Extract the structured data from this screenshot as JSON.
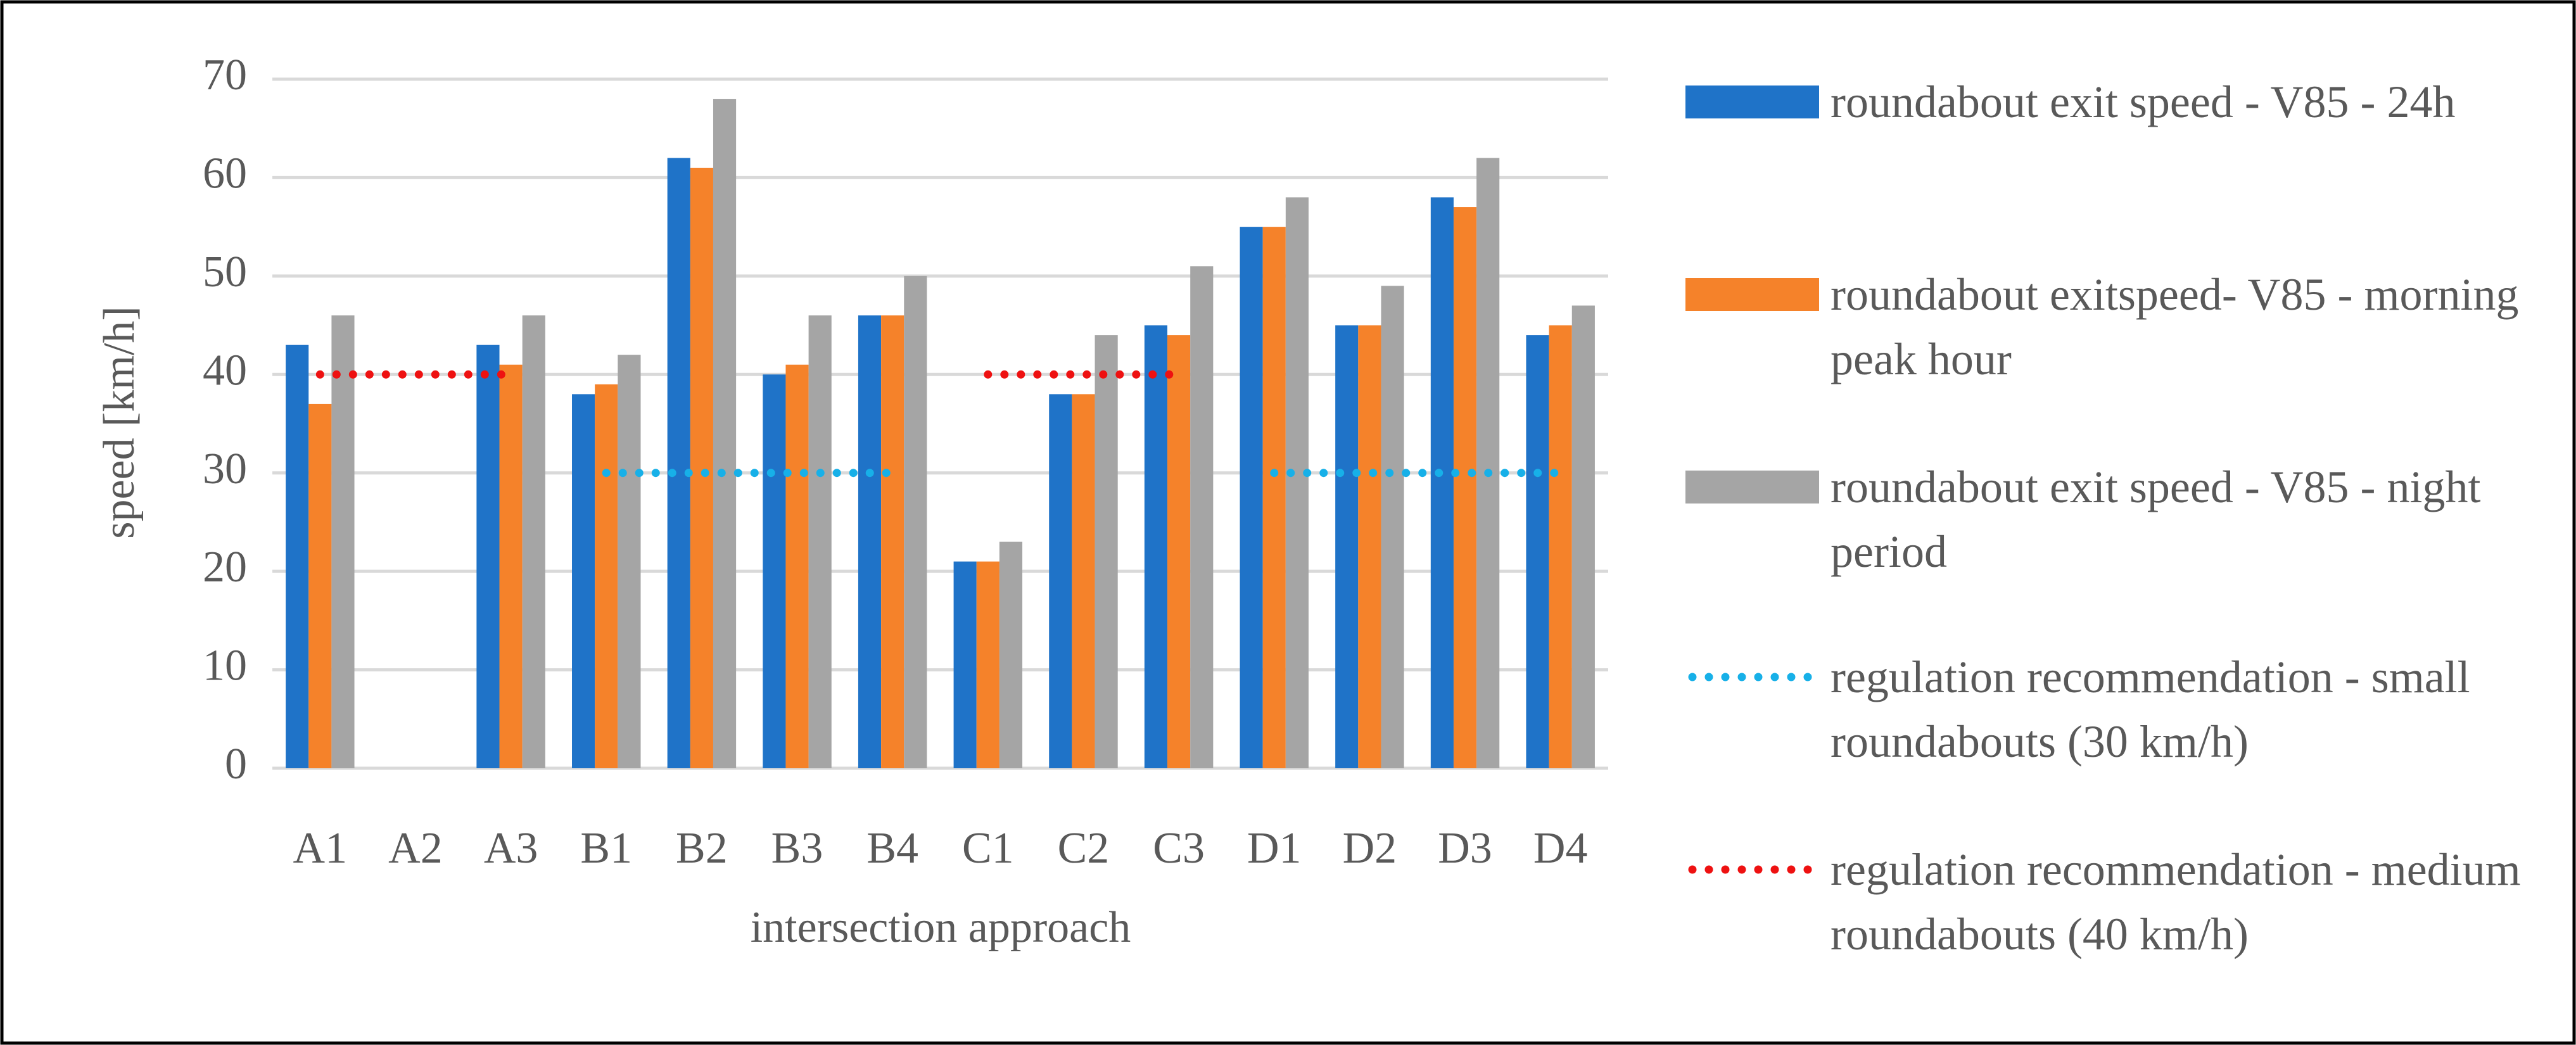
{
  "chart_data": {
    "type": "bar",
    "x_label": "intersection approach",
    "y_label": "speed [km/h]",
    "categories": [
      "A1",
      "A2",
      "A3",
      "B1",
      "B2",
      "B3",
      "B4",
      "C1",
      "C2",
      "C3",
      "D1",
      "D2",
      "D3",
      "D4"
    ],
    "series": [
      {
        "name": "roundabout exit speed - V85 - 24h",
        "color": "#1f73c8",
        "type": "bar",
        "values": [
          43,
          null,
          43,
          38,
          62,
          40,
          46,
          21,
          38,
          45,
          55,
          45,
          58,
          44
        ]
      },
      {
        "name": "roundabout exitspeed- V85 - morning peak hour",
        "color": "#f5822a",
        "type": "bar",
        "values": [
          37,
          null,
          41,
          39,
          61,
          41,
          46,
          21,
          38,
          44,
          55,
          45,
          57,
          45
        ]
      },
      {
        "name": "roundabout exit speed - V85 - night period",
        "color": "#a5a5a5",
        "type": "bar",
        "values": [
          46,
          null,
          46,
          42,
          68,
          46,
          50,
          23,
          44,
          51,
          58,
          49,
          62,
          47
        ]
      },
      {
        "name": "regulation recommendation - small roundabouts (30 km/h)",
        "color": "#17b0e8",
        "type": "line",
        "values": [
          null,
          null,
          null,
          30,
          30,
          30,
          30,
          null,
          null,
          null,
          30,
          30,
          30,
          30
        ]
      },
      {
        "name": "regulation recommendation - medium roundabouts (40 km/h)",
        "color": "#ee1111",
        "type": "line",
        "values": [
          40,
          40,
          40,
          null,
          null,
          null,
          null,
          40,
          40,
          40,
          null,
          null,
          null,
          null
        ]
      }
    ],
    "ylim": [
      0,
      70
    ],
    "yticks": [
      0,
      10,
      20,
      30,
      40,
      50,
      60,
      70
    ],
    "grid": true,
    "legend": "right"
  }
}
